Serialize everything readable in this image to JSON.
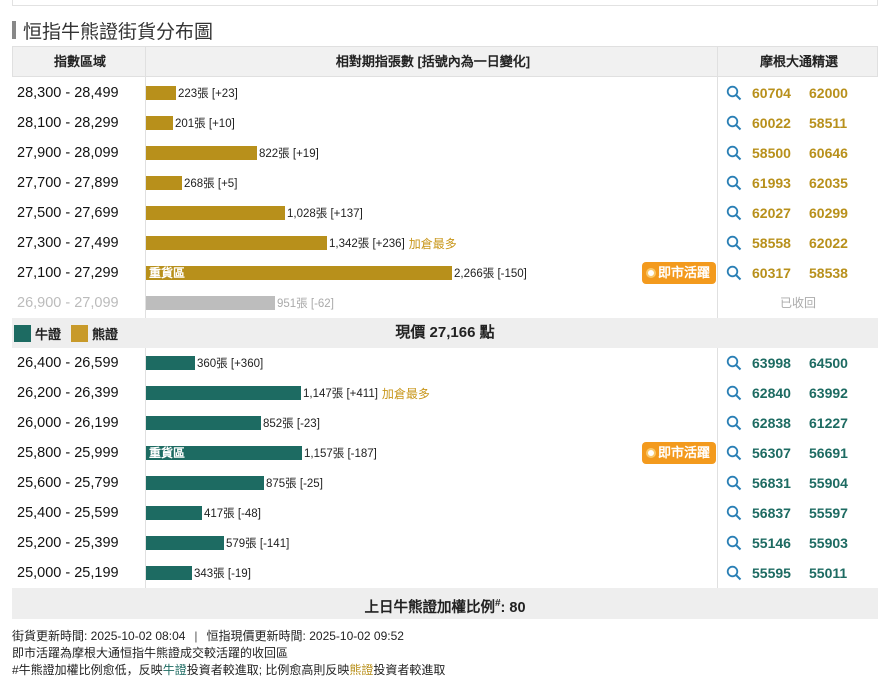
{
  "title": "恒指牛熊證街貨分布圖",
  "headers": {
    "range": "指數區域",
    "change": "相對期指張數 [括號內為一日變化]",
    "picks": "摩根大通精選"
  },
  "colors": {
    "bear": "#b8901b",
    "bull": "#1d6b62",
    "recalled": "#bdbdbd",
    "hot": "#f39a1d"
  },
  "bear_rows": [
    {
      "range": "28,300 - 28,499",
      "count": 223,
      "label": "223張 [+23]",
      "codes": [
        "60704",
        "62000"
      ]
    },
    {
      "range": "28,100 - 28,299",
      "count": 201,
      "label": "201張 [+10]",
      "codes": [
        "60022",
        "58511"
      ]
    },
    {
      "range": "27,900 - 28,099",
      "count": 822,
      "label": "822張 [+19]",
      "codes": [
        "58500",
        "60646"
      ]
    },
    {
      "range": "27,700 - 27,899",
      "count": 268,
      "label": "268張 [+5]",
      "codes": [
        "61993",
        "62035"
      ]
    },
    {
      "range": "27,500 - 27,699",
      "count": 1028,
      "label": "1,028張 [+137]",
      "codes": [
        "62027",
        "60299"
      ]
    },
    {
      "range": "27,300 - 27,499",
      "count": 1342,
      "label": "1,342張 [+236]",
      "note": "加倉最多",
      "codes": [
        "58558",
        "62022"
      ]
    },
    {
      "range": "27,100 - 27,299",
      "count": 2266,
      "label": "2,266張 [-150]",
      "heavy": "重貨區",
      "hot": "即市活躍",
      "codes": [
        "60317",
        "58538"
      ]
    }
  ],
  "recalled_row": {
    "range": "26,900 - 27,099",
    "count": 951,
    "label": "951張 [-62]",
    "status": "已收回"
  },
  "mid": {
    "bull_legend": "牛證",
    "bear_legend": "熊證",
    "price_text": "現價 27,166 點"
  },
  "bull_rows": [
    {
      "range": "26,400 - 26,599",
      "count": 360,
      "label": "360張 [+360]",
      "codes": [
        "63998",
        "64500"
      ]
    },
    {
      "range": "26,200 - 26,399",
      "count": 1147,
      "label": "1,147張 [+411]",
      "note": "加倉最多",
      "codes": [
        "62840",
        "63992"
      ]
    },
    {
      "range": "26,000 - 26,199",
      "count": 852,
      "label": "852張 [-23]",
      "codes": [
        "62838",
        "61227"
      ]
    },
    {
      "range": "25,800 - 25,999",
      "count": 1157,
      "label": "1,157張 [-187]",
      "heavy": "重貨區",
      "hot": "即市活躍",
      "codes": [
        "56307",
        "56691"
      ]
    },
    {
      "range": "25,600 - 25,799",
      "count": 875,
      "label": "875張 [-25]",
      "codes": [
        "56831",
        "55904"
      ]
    },
    {
      "range": "25,400 - 25,599",
      "count": 417,
      "label": "417張 [-48]",
      "codes": [
        "56837",
        "55597"
      ]
    },
    {
      "range": "25,200 - 25,399",
      "count": 579,
      "label": "579張 [-141]",
      "codes": [
        "55146",
        "55903"
      ]
    },
    {
      "range": "25,000 - 25,199",
      "count": 343,
      "label": "343張 [-19]",
      "codes": [
        "55595",
        "55011"
      ]
    }
  ],
  "ratio": {
    "label": "上日牛熊證加權比例",
    "sup": "#",
    "value": ": 80"
  },
  "notes": {
    "update_time": "街貨更新時間: 2025-10-02 08:04",
    "divider": "|",
    "price_time": "恒指現價更新時間: 2025-10-02 09:52",
    "hot_note": "即市活躍為摩根大通恒指牛熊證成交較活躍的收回區",
    "ratio_prefix": "#牛熊證加權比例愈低，反映",
    "ratio_bull": "牛證",
    "ratio_mid": "投資者較進取; 比例愈高則反映",
    "ratio_bear": "熊證",
    "ratio_suffix": "投資者較進取"
  }
}
